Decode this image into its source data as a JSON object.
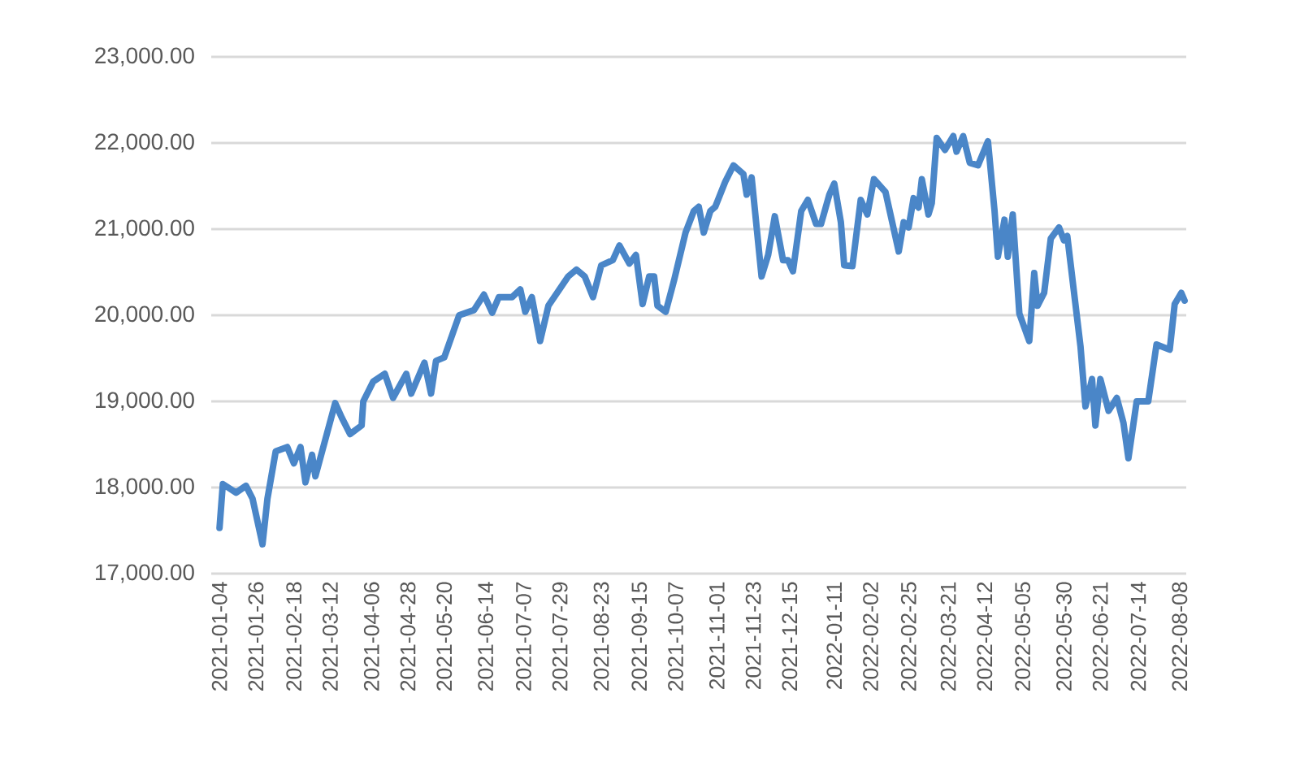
{
  "chart_data": {
    "type": "line",
    "x": [
      "2021-01-04",
      "2021-01-06",
      "2021-01-14",
      "2021-01-20",
      "2021-01-24",
      "2021-01-30",
      "2021-02-02",
      "2021-02-07",
      "2021-02-14",
      "2021-02-18",
      "2021-02-22",
      "2021-02-25",
      "2021-03-01",
      "2021-03-03",
      "2021-03-15",
      "2021-03-19",
      "2021-03-24",
      "2021-03-31",
      "2021-04-01",
      "2021-04-07",
      "2021-04-14",
      "2021-04-19",
      "2021-04-27",
      "2021-04-30",
      "2021-05-08",
      "2021-05-12",
      "2021-05-15",
      "2021-05-20",
      "2021-05-29",
      "2021-06-07",
      "2021-06-13",
      "2021-06-18",
      "2021-06-22",
      "2021-06-30",
      "2021-07-05",
      "2021-07-08",
      "2021-07-12",
      "2021-07-17",
      "2021-07-22",
      "2021-08-03",
      "2021-08-08",
      "2021-08-13",
      "2021-08-18",
      "2021-08-23",
      "2021-08-30",
      "2021-09-03",
      "2021-09-09",
      "2021-09-13",
      "2021-09-17",
      "2021-09-21",
      "2021-09-24",
      "2021-09-26",
      "2021-10-01",
      "2021-10-06",
      "2021-10-13",
      "2021-10-18",
      "2021-10-21",
      "2021-10-24",
      "2021-10-28",
      "2021-10-31",
      "2021-11-06",
      "2021-11-11",
      "2021-11-17",
      "2021-11-19",
      "2021-11-22",
      "2021-11-28",
      "2021-12-02",
      "2021-12-06",
      "2021-12-11",
      "2021-12-14",
      "2021-12-17",
      "2021-12-22",
      "2021-12-26",
      "2021-12-31",
      "2022-01-03",
      "2022-01-08",
      "2022-01-11",
      "2022-01-15",
      "2022-01-17",
      "2022-01-22",
      "2022-01-27",
      "2022-01-31",
      "2022-02-04",
      "2022-02-11",
      "2022-02-19",
      "2022-02-22",
      "2022-02-25",
      "2022-02-28",
      "2022-03-03",
      "2022-03-05",
      "2022-03-09",
      "2022-03-11",
      "2022-03-14",
      "2022-03-19",
      "2022-03-24",
      "2022-03-26",
      "2022-03-30",
      "2022-04-03",
      "2022-04-08",
      "2022-04-14",
      "2022-04-18",
      "2022-04-20",
      "2022-04-24",
      "2022-04-26",
      "2022-04-29",
      "2022-05-03",
      "2022-05-09",
      "2022-05-12",
      "2022-05-14",
      "2022-05-18",
      "2022-05-22",
      "2022-05-27",
      "2022-05-30",
      "2022-06-01",
      "2022-06-09",
      "2022-06-12",
      "2022-06-16",
      "2022-06-18",
      "2022-06-21",
      "2022-06-26",
      "2022-07-01",
      "2022-07-05",
      "2022-07-08",
      "2022-07-13",
      "2022-07-20",
      "2022-07-25",
      "2022-08-02",
      "2022-08-05",
      "2022-08-09",
      "2022-08-11"
    ],
    "values": [
      17530,
      18040,
      17940,
      18020,
      17870,
      17340,
      17870,
      18420,
      18470,
      18280,
      18470,
      18060,
      18380,
      18130,
      18980,
      18810,
      18620,
      18720,
      19000,
      19230,
      19320,
      19040,
      19320,
      19090,
      19450,
      19090,
      19470,
      19510,
      20000,
      20060,
      20240,
      20030,
      20210,
      20210,
      20300,
      20040,
      20210,
      19700,
      20110,
      20450,
      20530,
      20450,
      20210,
      20580,
      20640,
      20810,
      20600,
      20700,
      20130,
      20450,
      20450,
      20110,
      20040,
      20400,
      20960,
      21210,
      21260,
      20960,
      21210,
      21260,
      21550,
      21740,
      21640,
      21400,
      21600,
      20450,
      20700,
      21150,
      20640,
      20640,
      20510,
      21210,
      21340,
      21060,
      21060,
      21400,
      21530,
      21080,
      20580,
      20570,
      21340,
      21170,
      21580,
      21430,
      20740,
      21080,
      21020,
      21360,
      21250,
      21580,
      21170,
      21300,
      22060,
      21920,
      22080,
      21900,
      22080,
      21770,
      21740,
      22020,
      21210,
      20680,
      21110,
      20680,
      21170,
      20020,
      19700,
      20490,
      20110,
      20260,
      20890,
      21020,
      20870,
      20920,
      19640,
      18940,
      19260,
      18720,
      19260,
      18890,
      19040,
      18750,
      18340,
      19000,
      19000,
      19660,
      19600,
      20130,
      20260,
      20170
    ],
    "color": "#4a86c8",
    "xlim": [
      "2020-12-30",
      "2022-08-12"
    ],
    "xticks": [
      "2021-01-04",
      "2021-01-26",
      "2021-02-18",
      "2021-03-12",
      "2021-04-06",
      "2021-04-28",
      "2021-05-20",
      "2021-06-14",
      "2021-07-07",
      "2021-07-29",
      "2021-08-23",
      "2021-09-15",
      "2021-10-07",
      "2021-11-01",
      "2021-11-23",
      "2021-12-15",
      "2022-01-11",
      "2022-02-02",
      "2022-02-25",
      "2022-03-21",
      "2022-04-12",
      "2022-05-05",
      "2022-05-30",
      "2022-06-21",
      "2022-07-14",
      "2022-08-08"
    ],
    "ylim": [
      17000,
      23000
    ],
    "yticks": [
      {
        "value": 17000,
        "label": "17,000.00"
      },
      {
        "value": 18000,
        "label": "18,000.00"
      },
      {
        "value": 19000,
        "label": "19,000.00"
      },
      {
        "value": 20000,
        "label": "20,000.00"
      },
      {
        "value": 21000,
        "label": "21,000.00"
      },
      {
        "value": 22000,
        "label": "22,000.00"
      },
      {
        "value": 23000,
        "label": "23,000.00"
      }
    ],
    "grid": "y",
    "marker": "none",
    "line_style": "solid"
  }
}
